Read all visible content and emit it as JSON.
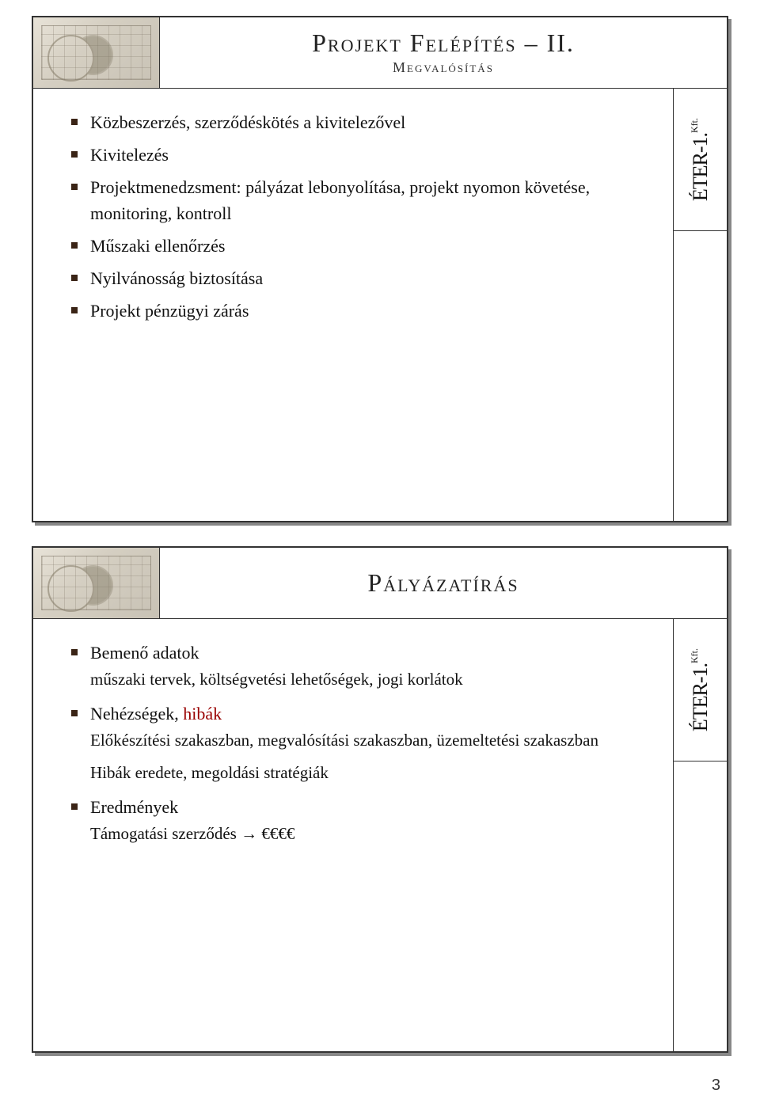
{
  "slide1": {
    "title": "Projekt Felépítés – II.",
    "subtitle": "Megvalósítás",
    "items": [
      "Közbeszerzés, szerződéskötés a kivitelezővel",
      "Kivitelezés",
      "Projektmenedzsment: pályázat lebonyolítása, projekt nyomon követése, monitoring, kontroll",
      "Műszaki ellenőrzés",
      "Nyilvánosság biztosítása",
      "Projekt pénzügyi zárás"
    ],
    "logo": "ÉTER-1.",
    "logo_suffix": "Kft."
  },
  "slide2": {
    "title": "Pályázatírás",
    "logo": "ÉTER-1.",
    "logo_suffix": "Kft.",
    "b1_label": "Bemenő adatok",
    "b1_sub": "műszaki tervek, költségvetési lehetőségek, jogi korlátok",
    "b2_label_a": "Nehézségek, ",
    "b2_label_b": "hibák",
    "b2_sub1": "Előkészítési szakaszban, megvalósítási szakaszban, üzemeltetési szakaszban",
    "b2_sub2": "Hibák eredete, megoldási stratégiák",
    "b3_label": "Eredmények",
    "b3_sub_a": "Támogatási szerződés ",
    "b3_arrow": "→",
    "b3_sub_b": " €€€€"
  },
  "page_number": "3",
  "colors": {
    "text": "#111111",
    "bullet": "#3a2416",
    "accent_red": "#990000",
    "border": "#333333",
    "shadow": "#888888",
    "background": "#ffffff"
  }
}
